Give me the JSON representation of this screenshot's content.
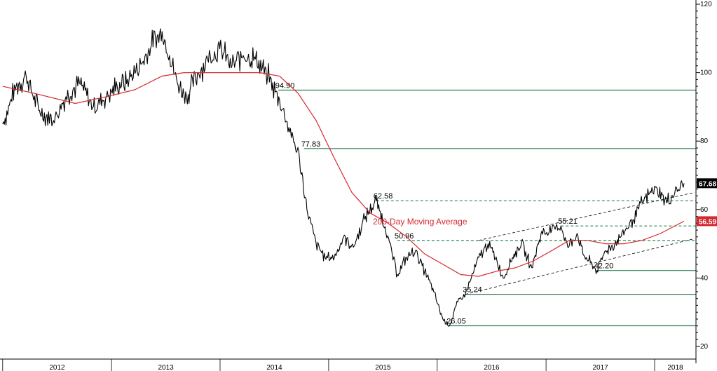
{
  "chart_data": {
    "type": "line",
    "x_ticks": [
      "2012",
      "2013",
      "2014",
      "2015",
      "2016",
      "2017",
      "2018"
    ],
    "y_ticks": [
      "20",
      "40",
      "60",
      "80",
      "100",
      "120"
    ],
    "ylim": [
      20,
      120
    ],
    "grid": false,
    "series": [
      {
        "name": "",
        "color": "#000000",
        "points": [
          [
            "2012-01-01",
            85
          ],
          [
            "2012-02-15",
            96
          ],
          [
            "2012-03-20",
            99
          ],
          [
            "2012-05-01",
            89
          ],
          [
            "2012-06-20",
            86
          ],
          [
            "2012-08-01",
            93
          ],
          [
            "2012-09-15",
            97
          ],
          [
            "2012-11-01",
            90
          ],
          [
            "2012-12-15",
            93
          ],
          [
            "2013-01-20",
            96
          ],
          [
            "2013-03-01",
            98
          ],
          [
            "2013-04-15",
            103
          ],
          [
            "2013-05-15",
            108
          ],
          [
            "2013-06-20",
            112
          ],
          [
            "2013-07-15",
            105
          ],
          [
            "2013-08-10",
            97
          ],
          [
            "2013-09-10",
            93
          ],
          [
            "2013-10-20",
            100
          ],
          [
            "2013-11-20",
            104
          ],
          [
            "2013-12-31",
            107
          ],
          [
            "2014-02-10",
            102
          ],
          [
            "2014-03-20",
            105
          ],
          [
            "2014-04-30",
            104
          ],
          [
            "2014-06-10",
            99
          ],
          [
            "2014-07-20",
            92
          ],
          [
            "2014-08-20",
            84
          ],
          [
            "2014-09-25",
            75
          ],
          [
            "2014-10-20",
            60
          ],
          [
            "2014-11-20",
            50
          ],
          [
            "2014-12-20",
            46
          ],
          [
            "2015-01-20",
            46
          ],
          [
            "2015-02-20",
            52
          ],
          [
            "2015-03-25",
            49
          ],
          [
            "2015-05-05",
            58
          ],
          [
            "2015-06-10",
            62.58
          ],
          [
            "2015-07-10",
            55
          ],
          [
            "2015-08-20",
            41
          ],
          [
            "2015-09-20",
            46
          ],
          [
            "2015-10-20",
            48
          ],
          [
            "2015-11-20",
            42
          ],
          [
            "2015-12-20",
            36
          ],
          [
            "2016-01-20",
            28
          ],
          [
            "2016-02-11",
            26.05
          ],
          [
            "2016-03-10",
            33
          ],
          [
            "2016-04-05",
            35.24
          ],
          [
            "2016-05-20",
            46
          ],
          [
            "2016-06-20",
            50
          ],
          [
            "2016-07-20",
            45
          ],
          [
            "2016-08-10",
            40
          ],
          [
            "2016-09-10",
            46
          ],
          [
            "2016-10-10",
            50
          ],
          [
            "2016-11-14",
            43
          ],
          [
            "2016-12-15",
            53
          ],
          [
            "2017-01-20",
            54
          ],
          [
            "2017-02-20",
            55.21
          ],
          [
            "2017-03-15",
            49
          ],
          [
            "2017-04-15",
            53
          ],
          [
            "2017-05-05",
            47
          ],
          [
            "2017-06-21",
            42.2
          ],
          [
            "2017-07-20",
            48
          ],
          [
            "2017-08-20",
            50
          ],
          [
            "2017-09-25",
            54
          ],
          [
            "2017-10-20",
            57
          ],
          [
            "2017-11-20",
            62
          ],
          [
            "2017-12-20",
            65
          ],
          [
            "2018-01-10",
            66
          ],
          [
            "2018-02-10",
            62
          ],
          [
            "2018-03-10",
            65
          ],
          [
            "2018-04-10",
            67.68
          ]
        ]
      },
      {
        "name": "200-Day Moving Average",
        "color": "#d6282f",
        "points": [
          [
            "2012-01-01",
            96
          ],
          [
            "2012-04-15",
            94
          ],
          [
            "2012-09-01",
            91
          ],
          [
            "2012-12-15",
            93
          ],
          [
            "2013-03-20",
            95
          ],
          [
            "2013-06-20",
            99
          ],
          [
            "2013-09-01",
            100
          ],
          [
            "2014-01-01",
            100
          ],
          [
            "2014-05-15",
            100
          ],
          [
            "2014-07-20",
            99
          ],
          [
            "2014-09-20",
            94
          ],
          [
            "2014-11-20",
            86
          ],
          [
            "2015-01-20",
            75
          ],
          [
            "2015-03-20",
            65
          ],
          [
            "2015-05-20",
            59
          ],
          [
            "2015-07-20",
            56
          ],
          [
            "2015-09-20",
            52
          ],
          [
            "2015-11-20",
            47
          ],
          [
            "2016-01-20",
            44
          ],
          [
            "2016-03-20",
            41
          ],
          [
            "2016-05-20",
            40.5
          ],
          [
            "2016-07-20",
            42
          ],
          [
            "2016-09-20",
            43
          ],
          [
            "2016-11-20",
            45
          ],
          [
            "2017-01-20",
            48
          ],
          [
            "2017-03-20",
            51
          ],
          [
            "2017-05-20",
            51
          ],
          [
            "2017-07-20",
            50
          ],
          [
            "2017-09-20",
            50
          ],
          [
            "2017-11-20",
            51
          ],
          [
            "2018-01-20",
            53
          ],
          [
            "2018-04-10",
            56.59
          ]
        ]
      }
    ],
    "ma_label": "200-Day Moving Average",
    "last_tags": [
      {
        "value": 67.68,
        "label": "67.68",
        "bg": "#000000",
        "fg": "#ffffff"
      },
      {
        "value": 56.59,
        "label": "56.59",
        "bg": "#d6282f",
        "fg": "#ffffff"
      }
    ],
    "levels": [
      {
        "value": 94.9,
        "label": "94.90",
        "style": "solid",
        "start": "2014-07-15"
      },
      {
        "value": 77.83,
        "label": "77.83",
        "style": "solid",
        "start": "2014-10-10"
      },
      {
        "value": 62.58,
        "label": "62.58",
        "style": "dashed",
        "start": "2015-06-10"
      },
      {
        "value": 55.21,
        "label": "55.21",
        "style": "dashed",
        "start": "2017-02-20"
      },
      {
        "value": 50.96,
        "label": "50.96",
        "style": "dashed",
        "start": "2015-08-20"
      },
      {
        "value": 42.2,
        "label": "42.20",
        "style": "solid",
        "start": "2017-06-21"
      },
      {
        "value": 35.24,
        "label": "35.24",
        "style": "solid",
        "start": "2016-04-05"
      },
      {
        "value": 26.05,
        "label": "26.05",
        "style": "solid",
        "start": "2016-02-11"
      }
    ],
    "trend_channel": [
      {
        "from": [
          "2016-04-05",
          35.24
        ],
        "to": [
          "2018-05-15",
          51.5
        ]
      },
      {
        "from": [
          "2016-05-20",
          51
        ],
        "to": [
          "2018-05-15",
          65
        ]
      }
    ]
  }
}
